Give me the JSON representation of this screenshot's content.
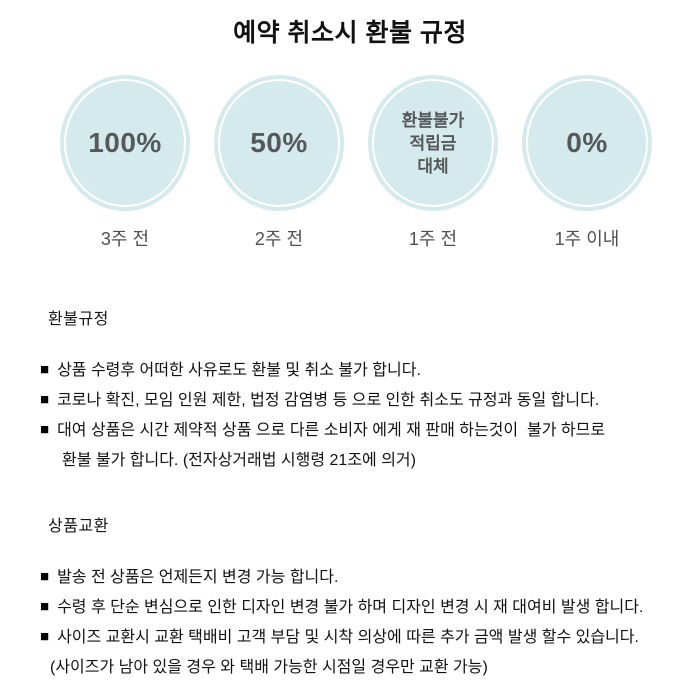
{
  "page": {
    "title": "예약 취소시 환불 규정"
  },
  "colors": {
    "circle_fill": "#d5eaec",
    "circle_ring": "#ffffff",
    "circle_text": "#56595b",
    "label_text": "#4f4f4f",
    "body_text": "#121212"
  },
  "bullet": "■",
  "tiers": [
    {
      "value_lines": [
        "100%"
      ],
      "label": "3주 전"
    },
    {
      "value_lines": [
        "50%"
      ],
      "label": "2주 전"
    },
    {
      "value_lines": [
        "환불불가",
        "적립금",
        "대체"
      ],
      "label": "1주 전"
    },
    {
      "value_lines": [
        "0%"
      ],
      "label": "1주 이내"
    }
  ],
  "sections": [
    {
      "heading": "환불규정",
      "bullets": [
        {
          "lines": [
            "상품 수령후 어떠한 사유로도 환불 및 취소 불가 합니다."
          ]
        },
        {
          "lines": [
            "코로나 확진, 모임 인원 제한, 법정 감염병 등 으로 인한 취소도 규정과 동일 합니다."
          ]
        },
        {
          "lines": [
            "대여 상품은 시간 제약적 상품 으로 다른 소비자 에게 재 판매 하는것이  불가 하므로",
            "환불 불가 합니다. (전자상거래법 시행령 21조에 의거)"
          ]
        }
      ]
    },
    {
      "heading": "상품교환",
      "bullets": [
        {
          "lines": [
            "발송 전 상품은 언제든지 변경 가능 합니다."
          ]
        },
        {
          "lines": [
            "수령 후 단순 변심으로 인한 디자인 변경 불가 하며 디자인 변경 시 재 대여비 발생 합니다."
          ]
        },
        {
          "lines": [
            "사이즈 교환시 교환 택배비 고객 부담 및 시착 의상에 따른 추가 금액 발생 할수 있습니다.",
            "(사이즈가 남아 있을 경우 와 택배 가능한 시점일 경우만 교환 가능)"
          ]
        }
      ]
    }
  ]
}
